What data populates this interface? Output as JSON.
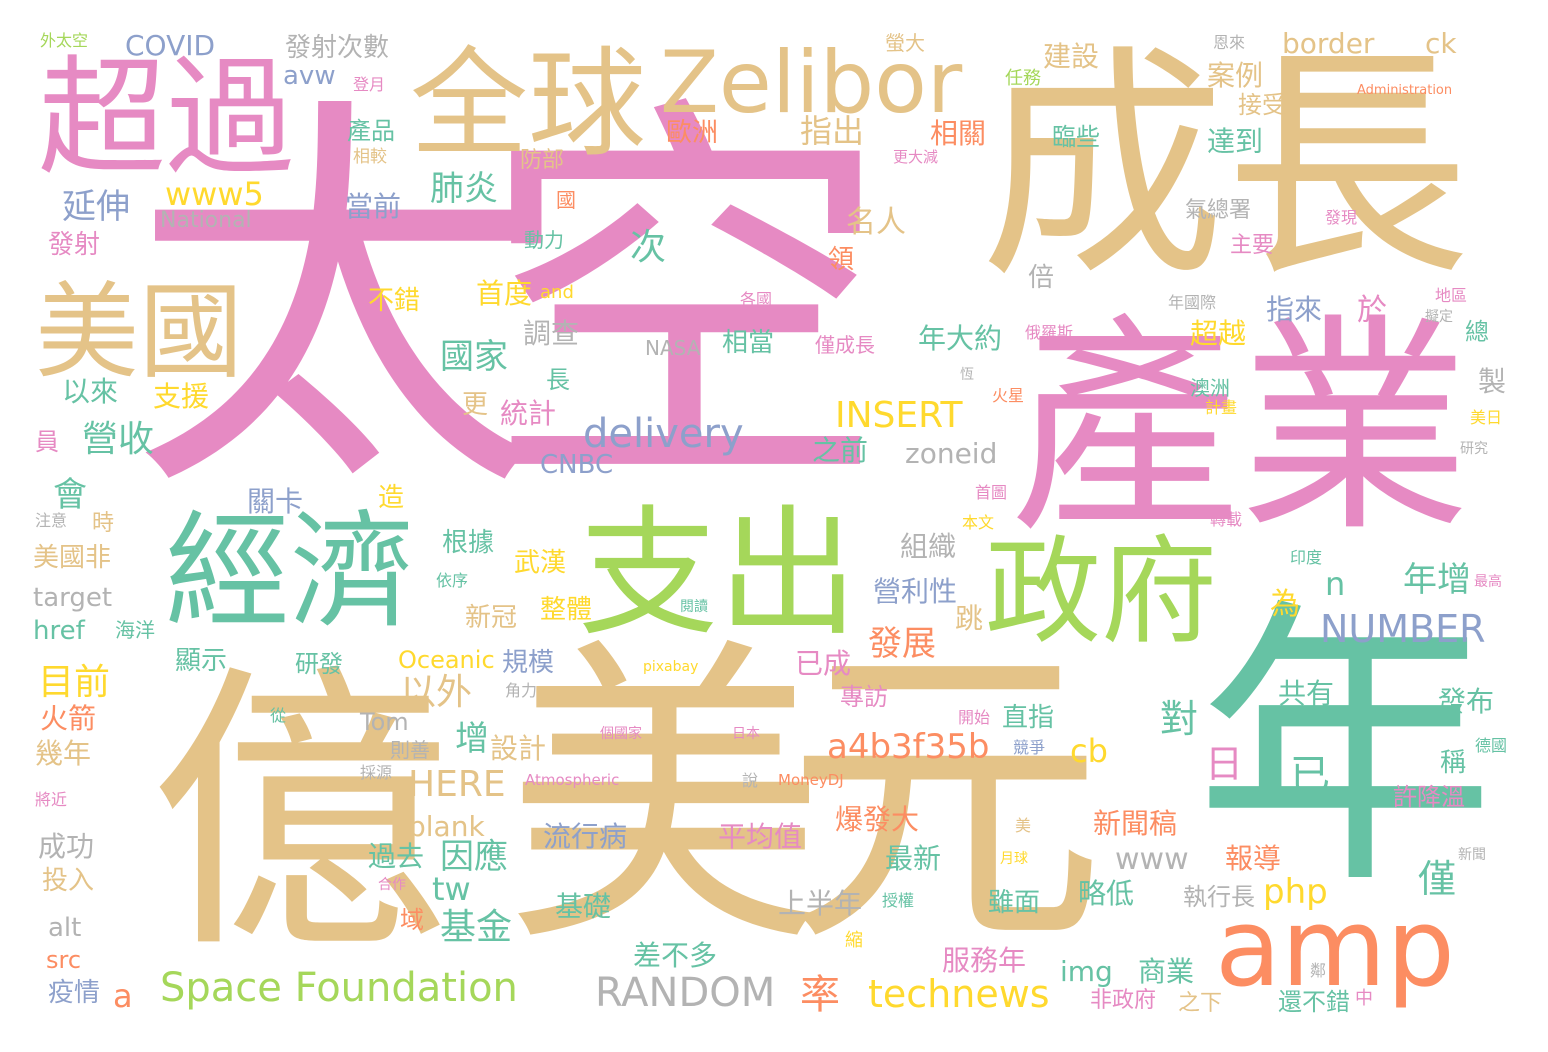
{
  "colors": {
    "pink": "#e68ac3",
    "tan": "#e4c388",
    "teal": "#66c2a4",
    "green": "#a5d75a",
    "orange": "#fc8d62",
    "blue": "#8da0cb",
    "gray": "#b3b3b3",
    "yellow": "#ffd92e"
  },
  "words": [
    {
      "text": "太空",
      "color": "pink"
    },
    {
      "text": "成長",
      "color": "tan"
    },
    {
      "text": "產業",
      "color": "pink"
    },
    {
      "text": "億",
      "color": "tan"
    },
    {
      "text": "美元",
      "color": "tan"
    },
    {
      "text": "年",
      "color": "teal"
    },
    {
      "text": "支出",
      "color": "green"
    },
    {
      "text": "經濟",
      "color": "teal"
    },
    {
      "text": "政府",
      "color": "green"
    },
    {
      "text": "超過",
      "color": "pink"
    },
    {
      "text": "全球",
      "color": "tan"
    },
    {
      "text": "Zelibor",
      "color": "tan"
    },
    {
      "text": "美國",
      "color": "tan"
    },
    {
      "text": "amp",
      "color": "orange"
    },
    {
      "text": "Space Foundation",
      "color": "green"
    },
    {
      "text": "RANDOM",
      "color": "gray"
    },
    {
      "text": "technews",
      "color": "yellow"
    },
    {
      "text": "delivery",
      "color": "blue"
    },
    {
      "text": "INSERT",
      "color": "yellow"
    },
    {
      "text": "NUMBER",
      "color": "blue"
    },
    {
      "text": "a4b3f35b",
      "color": "orange"
    },
    {
      "text": "www5",
      "color": "yellow"
    },
    {
      "text": "border",
      "color": "tan"
    },
    {
      "text": "ck",
      "color": "tan"
    },
    {
      "text": "COVID",
      "color": "blue"
    },
    {
      "text": "外太空",
      "color": "green"
    },
    {
      "text": "發射次數",
      "color": "gray"
    },
    {
      "text": "avw",
      "color": "blue"
    },
    {
      "text": "登月",
      "color": "pink"
    },
    {
      "text": "建設",
      "color": "tan"
    },
    {
      "text": "螢大",
      "color": "tan"
    },
    {
      "text": "案例",
      "color": "tan"
    },
    {
      "text": "接受",
      "color": "tan"
    },
    {
      "text": "達到",
      "color": "teal"
    },
    {
      "text": "臨些",
      "color": "teal"
    },
    {
      "text": "任務",
      "color": "green"
    },
    {
      "text": "Administration",
      "color": "orange"
    },
    {
      "text": "產品",
      "color": "teal"
    },
    {
      "text": "相較",
      "color": "tan"
    },
    {
      "text": "指出",
      "color": "tan"
    },
    {
      "text": "歐洲",
      "color": "orange"
    },
    {
      "text": "相關",
      "color": "orange"
    },
    {
      "text": "更大減",
      "color": "pink"
    },
    {
      "text": "延伸",
      "color": "blue"
    },
    {
      "text": "National",
      "color": "gray"
    },
    {
      "text": "當前",
      "color": "blue"
    },
    {
      "text": "肺炎",
      "color": "teal"
    },
    {
      "text": "防部",
      "color": "tan"
    },
    {
      "text": "國",
      "color": "orange"
    },
    {
      "text": "氣總署",
      "color": "gray"
    },
    {
      "text": "發現",
      "color": "pink"
    },
    {
      "text": "主要",
      "color": "pink"
    },
    {
      "text": "發射",
      "color": "pink"
    },
    {
      "text": "動力",
      "color": "teal"
    },
    {
      "text": "次",
      "color": "teal"
    },
    {
      "text": "名人",
      "color": "tan"
    },
    {
      "text": "領",
      "color": "orange"
    },
    {
      "text": "倍",
      "color": "gray"
    },
    {
      "text": "不錯",
      "color": "yellow"
    },
    {
      "text": "首度",
      "color": "yellow"
    },
    {
      "text": "and",
      "color": "yellow"
    },
    {
      "text": "各國",
      "color": "pink"
    },
    {
      "text": "年國際",
      "color": "gray"
    },
    {
      "text": "地區",
      "color": "pink"
    },
    {
      "text": "擬定",
      "color": "gray"
    },
    {
      "text": "調查",
      "color": "gray"
    },
    {
      "text": "指來",
      "color": "blue"
    },
    {
      "text": "於",
      "color": "pink"
    },
    {
      "text": "總",
      "color": "teal"
    },
    {
      "text": "國家",
      "color": "teal"
    },
    {
      "text": "超越",
      "color": "yellow"
    },
    {
      "text": "NASA",
      "color": "gray"
    },
    {
      "text": "相當",
      "color": "teal"
    },
    {
      "text": "僅成長",
      "color": "pink"
    },
    {
      "text": "俄羅斯",
      "color": "pink"
    },
    {
      "text": "年大約",
      "color": "teal"
    },
    {
      "text": "以來",
      "color": "teal"
    },
    {
      "text": "支援",
      "color": "yellow"
    },
    {
      "text": "長",
      "color": "teal"
    },
    {
      "text": "更",
      "color": "tan"
    },
    {
      "text": "統計",
      "color": "pink"
    },
    {
      "text": "火星",
      "color": "orange"
    },
    {
      "text": "澳洲",
      "color": "teal"
    },
    {
      "text": "計畫",
      "color": "yellow"
    },
    {
      "text": "製",
      "color": "gray"
    },
    {
      "text": "美日",
      "color": "yellow"
    },
    {
      "text": "研究",
      "color": "gray"
    },
    {
      "text": "員",
      "color": "pink"
    },
    {
      "text": "營收",
      "color": "teal"
    },
    {
      "text": "CNBC",
      "color": "blue"
    },
    {
      "text": "之前",
      "color": "teal"
    },
    {
      "text": "zoneid",
      "color": "gray"
    },
    {
      "text": "會",
      "color": "teal"
    },
    {
      "text": "關卡",
      "color": "blue"
    },
    {
      "text": "造",
      "color": "yellow"
    },
    {
      "text": "首圖",
      "color": "pink"
    },
    {
      "text": "本文",
      "color": "yellow"
    },
    {
      "text": "轉載",
      "color": "pink"
    },
    {
      "text": "注意",
      "color": "gray"
    },
    {
      "text": "時",
      "color": "tan"
    },
    {
      "text": "組織",
      "color": "gray"
    },
    {
      "text": "印度",
      "color": "teal"
    },
    {
      "text": "美國非",
      "color": "tan"
    },
    {
      "text": "根據",
      "color": "teal"
    },
    {
      "text": "武漢",
      "color": "yellow"
    },
    {
      "text": "年增",
      "color": "teal"
    },
    {
      "text": "依序",
      "color": "teal"
    },
    {
      "text": "營利性",
      "color": "blue"
    },
    {
      "text": "為",
      "color": "yellow"
    },
    {
      "text": "n",
      "color": "teal"
    },
    {
      "text": "target",
      "color": "gray"
    },
    {
      "text": "最高",
      "color": "pink"
    },
    {
      "text": "href",
      "color": "teal"
    },
    {
      "text": "海洋",
      "color": "teal"
    },
    {
      "text": "新冠",
      "color": "tan"
    },
    {
      "text": "整體",
      "color": "yellow"
    },
    {
      "text": "閱讀",
      "color": "teal"
    },
    {
      "text": "跳",
      "color": "tan"
    },
    {
      "text": "發展",
      "color": "orange"
    },
    {
      "text": "以外",
      "color": "tan"
    },
    {
      "text": "目前",
      "color": "yellow"
    },
    {
      "text": "顯示",
      "color": "teal"
    },
    {
      "text": "研發",
      "color": "teal"
    },
    {
      "text": "Oceanic",
      "color": "yellow"
    },
    {
      "text": "規模",
      "color": "blue"
    },
    {
      "text": "pixabay",
      "color": "yellow"
    },
    {
      "text": "已成",
      "color": "pink"
    },
    {
      "text": "對",
      "color": "teal"
    },
    {
      "text": "共有",
      "color": "teal"
    },
    {
      "text": "發布",
      "color": "teal"
    },
    {
      "text": "火箭",
      "color": "orange"
    },
    {
      "text": "角力",
      "color": "gray"
    },
    {
      "text": "從",
      "color": "teal"
    },
    {
      "text": "Tom",
      "color": "gray"
    },
    {
      "text": "增",
      "color": "teal"
    },
    {
      "text": "專訪",
      "color": "pink"
    },
    {
      "text": "開始",
      "color": "pink"
    },
    {
      "text": "直指",
      "color": "teal"
    },
    {
      "text": "幾年",
      "color": "tan"
    },
    {
      "text": "則善",
      "color": "gray"
    },
    {
      "text": "設計",
      "color": "tan"
    },
    {
      "text": "個國家",
      "color": "pink"
    },
    {
      "text": "日本",
      "color": "pink"
    },
    {
      "text": "cb",
      "color": "yellow"
    },
    {
      "text": "日",
      "color": "pink"
    },
    {
      "text": "已",
      "color": "teal"
    },
    {
      "text": "競爭",
      "color": "blue"
    },
    {
      "text": "德國",
      "color": "teal"
    },
    {
      "text": "稱",
      "color": "teal"
    },
    {
      "text": "採源",
      "color": "gray"
    },
    {
      "text": "HERE",
      "color": "tan"
    },
    {
      "text": "Atmospheric",
      "color": "pink"
    },
    {
      "text": "說",
      "color": "gray"
    },
    {
      "text": "MoneyDJ",
      "color": "orange"
    },
    {
      "text": "許降溫",
      "color": "pink"
    },
    {
      "text": "將近",
      "color": "pink"
    },
    {
      "text": "blank",
      "color": "tan"
    },
    {
      "text": "爆發大",
      "color": "orange"
    },
    {
      "text": "美",
      "color": "tan"
    },
    {
      "text": "平均值",
      "color": "pink"
    },
    {
      "text": "流行病",
      "color": "blue"
    },
    {
      "text": "新聞稿",
      "color": "orange"
    },
    {
      "text": "成功",
      "color": "gray"
    },
    {
      "text": "過去",
      "color": "teal"
    },
    {
      "text": "因應",
      "color": "teal"
    },
    {
      "text": "最新",
      "color": "teal"
    },
    {
      "text": "www",
      "color": "gray"
    },
    {
      "text": "報導",
      "color": "orange"
    },
    {
      "text": "月球",
      "color": "yellow"
    },
    {
      "text": "新聞",
      "color": "gray"
    },
    {
      "text": "投入",
      "color": "tan"
    },
    {
      "text": "合作",
      "color": "pink"
    },
    {
      "text": "tw",
      "color": "teal"
    },
    {
      "text": "php",
      "color": "yellow"
    },
    {
      "text": "僅",
      "color": "teal"
    },
    {
      "text": "略低",
      "color": "teal"
    },
    {
      "text": "執行長",
      "color": "gray"
    },
    {
      "text": "基礎",
      "color": "teal"
    },
    {
      "text": "上半年",
      "color": "gray"
    },
    {
      "text": "授權",
      "color": "teal"
    },
    {
      "text": "雖面",
      "color": "teal"
    },
    {
      "text": "alt",
      "color": "gray"
    },
    {
      "text": "基金",
      "color": "teal"
    },
    {
      "text": "域",
      "color": "orange"
    },
    {
      "text": "縮",
      "color": "yellow"
    },
    {
      "text": "src",
      "color": "orange"
    },
    {
      "text": "差不多",
      "color": "teal"
    },
    {
      "text": "服務年",
      "color": "pink"
    },
    {
      "text": "img",
      "color": "teal"
    },
    {
      "text": "商業",
      "color": "teal"
    },
    {
      "text": "鄰",
      "color": "gray"
    },
    {
      "text": "疫情",
      "color": "blue"
    },
    {
      "text": "a",
      "color": "orange"
    },
    {
      "text": "率",
      "color": "orange"
    },
    {
      "text": "非政府",
      "color": "pink"
    },
    {
      "text": "之下",
      "color": "tan"
    },
    {
      "text": "還不錯",
      "color": "teal"
    },
    {
      "text": "中",
      "color": "pink"
    },
    {
      "text": "恩來",
      "color": "gray"
    },
    {
      "text": "恆",
      "color": "gray"
    }
  ]
}
